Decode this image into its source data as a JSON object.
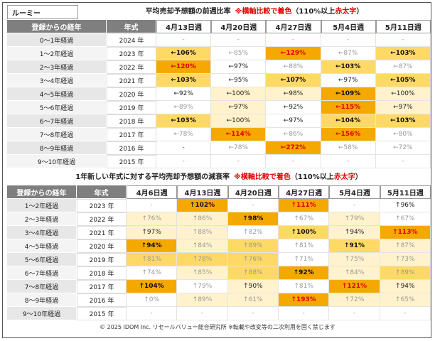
{
  "brand": "ルーミー",
  "colors": {
    "header_bg": "#7f7f7f",
    "high": "#f5a800",
    "mid": "#ffd966",
    "low": "#fff2cc",
    "none": "#ffffff",
    "red_text": "#e00000"
  },
  "table1": {
    "title_main": "平均売却予想額の前週比率",
    "title_note_prefix": "※",
    "title_note": "横軸比較で着色",
    "title_rule": "（110%以上",
    "title_rule_red": "赤太字",
    "title_rule_end": "）",
    "col_label": "登録からの経年",
    "col_year": "年式",
    "weeks": [
      "4月13日週",
      "4月20日週",
      "4月27日週",
      "5月4日週",
      "5月11日週"
    ],
    "rows": [
      {
        "label": "0～1年経過",
        "year": "2024 年",
        "cells": [
          [
            "-",
            "n",
            "none",
            0
          ],
          [
            "-",
            "n",
            "none",
            0
          ],
          [
            "-",
            "n",
            "none",
            0
          ],
          [
            "-",
            "n",
            "none",
            0
          ],
          [
            "-",
            "n",
            "none",
            0
          ]
        ]
      },
      {
        "label": "1～2年経過",
        "year": "2023 年",
        "cells": [
          [
            "←106%",
            "b",
            "mid",
            0
          ],
          [
            "←85%",
            "g",
            "none",
            0
          ],
          [
            "←129%",
            "r",
            "high",
            1
          ],
          [
            "←87%",
            "g",
            "none",
            0
          ],
          [
            "←103%",
            "b",
            "mid",
            0
          ]
        ]
      },
      {
        "label": "2～3年経過",
        "year": "2022 年",
        "cells": [
          [
            "←120%",
            "r",
            "high",
            1
          ],
          [
            "←97%",
            "n",
            "none",
            0
          ],
          [
            "←88%",
            "g",
            "none",
            0
          ],
          [
            "←103%",
            "b",
            "mid",
            0
          ],
          [
            "←87%",
            "g",
            "none",
            0
          ]
        ]
      },
      {
        "label": "3～4年経過",
        "year": "2021 年",
        "cells": [
          [
            "←103%",
            "b",
            "mid",
            0
          ],
          [
            "←95%",
            "n",
            "none",
            0
          ],
          [
            "←107%",
            "b",
            "mid",
            0
          ],
          [
            "←97%",
            "n",
            "none",
            0
          ],
          [
            "←105%",
            "b",
            "mid",
            0
          ]
        ]
      },
      {
        "label": "4～5年経過",
        "year": "2020 年",
        "cells": [
          [
            "←92%",
            "n",
            "none",
            0
          ],
          [
            "←100%",
            "n",
            "low",
            0
          ],
          [
            "←98%",
            "n",
            "low",
            0
          ],
          [
            "←109%",
            "b",
            "high",
            0
          ],
          [
            "←100%",
            "n",
            "low",
            0
          ]
        ]
      },
      {
        "label": "5～6年経過",
        "year": "2019 年",
        "cells": [
          [
            "←89%",
            "g",
            "none",
            0
          ],
          [
            "←97%",
            "n",
            "low",
            0
          ],
          [
            "←92%",
            "n",
            "none",
            0
          ],
          [
            "←115%",
            "r",
            "high",
            1
          ],
          [
            "←97%",
            "n",
            "low",
            0
          ]
        ]
      },
      {
        "label": "6～7年経過",
        "year": "2018 年",
        "cells": [
          [
            "←103%",
            "b",
            "mid",
            0
          ],
          [
            "←100%",
            "n",
            "low",
            0
          ],
          [
            "←97%",
            "n",
            "none",
            0
          ],
          [
            "←104%",
            "b",
            "mid",
            0
          ],
          [
            "←103%",
            "b",
            "mid",
            0
          ]
        ]
      },
      {
        "label": "7～8年経過",
        "year": "2017 年",
        "cells": [
          [
            "←78%",
            "g",
            "none",
            0
          ],
          [
            "←114%",
            "r",
            "high",
            1
          ],
          [
            "←86%",
            "g",
            "none",
            0
          ],
          [
            "←156%",
            "r",
            "high",
            1
          ],
          [
            "←80%",
            "g",
            "none",
            0
          ]
        ]
      },
      {
        "label": "8～9年経過",
        "year": "2016 年",
        "cells": [
          [
            "-",
            "r",
            "none",
            0
          ],
          [
            "←78%",
            "g",
            "none",
            0
          ],
          [
            "←272%",
            "r",
            "high",
            1
          ],
          [
            "←58%",
            "g",
            "none",
            0
          ],
          [
            "←72%",
            "g",
            "none",
            0
          ]
        ]
      },
      {
        "label": "9～10年経過",
        "year": "2015 年",
        "cells": [
          [
            "-",
            "n",
            "none",
            0
          ],
          [
            "-",
            "n",
            "none",
            0
          ],
          [
            "-",
            "n",
            "none",
            0
          ],
          [
            "-",
            "n",
            "none",
            0
          ],
          [
            "-",
            "n",
            "none",
            0
          ]
        ]
      }
    ]
  },
  "table2": {
    "title_main": "1年新しい年式に対する平均売却予想額の減衰率",
    "title_note_prefix": "※",
    "title_note": "横軸比較で着色",
    "title_rule": "（110%以上",
    "title_rule_red": "赤太字",
    "title_rule_end": "）",
    "col_label": "登録からの経年",
    "col_year": "年式",
    "weeks": [
      "4月6日週",
      "4月13日週",
      "4月20日週",
      "4月27日週",
      "5月4日週",
      "5月11日週"
    ],
    "rows": [
      {
        "label": "1～2年経過",
        "year": "2023 年",
        "cells": [
          [
            "-",
            "n",
            "none",
            0
          ],
          [
            "↑102%",
            "b",
            "high",
            0
          ],
          [
            "-",
            "n",
            "none",
            0
          ],
          [
            "↑111%",
            "r",
            "high",
            1
          ],
          [
            "-",
            "n",
            "none",
            0
          ],
          [
            "↑96%",
            "n",
            "none",
            0
          ]
        ]
      },
      {
        "label": "2～3年経過",
        "year": "2022 年",
        "cells": [
          [
            "↑76%",
            "g",
            "low",
            0
          ],
          [
            "↑86%",
            "g",
            "low",
            0
          ],
          [
            "↑98%",
            "b",
            "high",
            0
          ],
          [
            "↑67%",
            "g",
            "none",
            0
          ],
          [
            "↑79%",
            "g",
            "low",
            0
          ],
          [
            "↑67%",
            "g",
            "none",
            0
          ]
        ]
      },
      {
        "label": "3～4年経過",
        "year": "2021 年",
        "cells": [
          [
            "↑97%",
            "n",
            "low",
            0
          ],
          [
            "↑88%",
            "g",
            "low",
            0
          ],
          [
            "↑82%",
            "g",
            "none",
            0
          ],
          [
            "↑100%",
            "b",
            "mid",
            0
          ],
          [
            "↑94%",
            "n",
            "low",
            0
          ],
          [
            "↑113%",
            "r",
            "high",
            1
          ]
        ]
      },
      {
        "label": "4～5年経過",
        "year": "2020 年",
        "cells": [
          [
            "↑94%",
            "b",
            "high",
            0
          ],
          [
            "↑84%",
            "g",
            "low",
            0
          ],
          [
            "↑89%",
            "g",
            "mid",
            0
          ],
          [
            "↑81%",
            "g",
            "none",
            0
          ],
          [
            "↑91%",
            "b",
            "mid",
            0
          ],
          [
            "↑87%",
            "g",
            "low",
            0
          ]
        ]
      },
      {
        "label": "5～6年経過",
        "year": "2019 年",
        "cells": [
          [
            "↑81%",
            "g",
            "mid",
            0
          ],
          [
            "↑78%",
            "g",
            "mid",
            0
          ],
          [
            "↑76%",
            "g",
            "mid",
            0
          ],
          [
            "↑71%",
            "g",
            "none",
            0
          ],
          [
            "↑75%",
            "g",
            "low",
            0
          ],
          [
            "↑73%",
            "g",
            "low",
            0
          ]
        ]
      },
      {
        "label": "6～7年経過",
        "year": "2018 年",
        "cells": [
          [
            "↑74%",
            "g",
            "none",
            0
          ],
          [
            "↑85%",
            "g",
            "low",
            0
          ],
          [
            "↑88%",
            "g",
            "mid",
            0
          ],
          [
            "↑92%",
            "b",
            "high",
            0
          ],
          [
            "↑84%",
            "g",
            "low",
            0
          ],
          [
            "↑89%",
            "g",
            "mid",
            0
          ]
        ]
      },
      {
        "label": "7～8年経過",
        "year": "2017 年",
        "cells": [
          [
            "↑104%",
            "b",
            "high",
            0
          ],
          [
            "↑79%",
            "g",
            "none",
            0
          ],
          [
            "↑90%",
            "n",
            "low",
            0
          ],
          [
            "↑81%",
            "g",
            "none",
            0
          ],
          [
            "↑121%",
            "r",
            "high",
            1
          ],
          [
            "↑94%",
            "n",
            "low",
            0
          ]
        ]
      },
      {
        "label": "8～9年経過",
        "year": "2016 年",
        "cells": [
          [
            "↑0%",
            "g",
            "none",
            0
          ],
          [
            "↑89%",
            "g",
            "low",
            0
          ],
          [
            "↑61%",
            "g",
            "low",
            0
          ],
          [
            "↑193%",
            "r",
            "high",
            1
          ],
          [
            "↑72%",
            "g",
            "low",
            0
          ],
          [
            "↑65%",
            "g",
            "low",
            0
          ]
        ]
      },
      {
        "label": "9～10年経過",
        "year": "2015 年",
        "cells": [
          [
            "-",
            "n",
            "none",
            0
          ],
          [
            "-",
            "n",
            "none",
            0
          ],
          [
            "-",
            "n",
            "none",
            0
          ],
          [
            "-",
            "n",
            "none",
            0
          ],
          [
            "-",
            "n",
            "none",
            0
          ],
          [
            "-",
            "n",
            "none",
            0
          ]
        ]
      }
    ]
  },
  "footer": "© 2025 IDOM Inc. リセールバリュー総合研究所 ※転載や改変等の二次利用を固く禁じます",
  "chart_data": [
    {
      "type": "table",
      "title": "平均売却予想額の前週比率",
      "categories": [
        "4月13日週",
        "4月20日週",
        "4月27日週",
        "5月4日週",
        "5月11日週"
      ],
      "series": [
        {
          "name": "2023 年",
          "values": [
            106,
            85,
            129,
            87,
            103
          ]
        },
        {
          "name": "2022 年",
          "values": [
            120,
            97,
            88,
            103,
            87
          ]
        },
        {
          "name": "2021 年",
          "values": [
            103,
            95,
            107,
            97,
            105
          ]
        },
        {
          "name": "2020 年",
          "values": [
            92,
            100,
            98,
            109,
            100
          ]
        },
        {
          "name": "2019 年",
          "values": [
            89,
            97,
            92,
            115,
            97
          ]
        },
        {
          "name": "2018 年",
          "values": [
            103,
            100,
            97,
            104,
            103
          ]
        },
        {
          "name": "2017 年",
          "values": [
            78,
            114,
            86,
            156,
            80
          ]
        },
        {
          "name": "2016 年",
          "values": [
            null,
            78,
            272,
            58,
            72
          ]
        }
      ]
    },
    {
      "type": "table",
      "title": "1年新しい年式に対する平均売却予想額の減衰率",
      "categories": [
        "4月6日週",
        "4月13日週",
        "4月20日週",
        "4月27日週",
        "5月4日週",
        "5月11日週"
      ],
      "series": [
        {
          "name": "2023 年",
          "values": [
            null,
            102,
            null,
            111,
            null,
            96
          ]
        },
        {
          "name": "2022 年",
          "values": [
            76,
            86,
            98,
            67,
            79,
            67
          ]
        },
        {
          "name": "2021 年",
          "values": [
            97,
            88,
            82,
            100,
            94,
            113
          ]
        },
        {
          "name": "2020 年",
          "values": [
            94,
            84,
            89,
            81,
            91,
            87
          ]
        },
        {
          "name": "2019 年",
          "values": [
            81,
            78,
            76,
            71,
            75,
            73
          ]
        },
        {
          "name": "2018 年",
          "values": [
            74,
            85,
            88,
            92,
            84,
            89
          ]
        },
        {
          "name": "2017 年",
          "values": [
            104,
            79,
            90,
            81,
            121,
            94
          ]
        },
        {
          "name": "2016 年",
          "values": [
            0,
            89,
            61,
            193,
            72,
            65
          ]
        }
      ]
    }
  ]
}
